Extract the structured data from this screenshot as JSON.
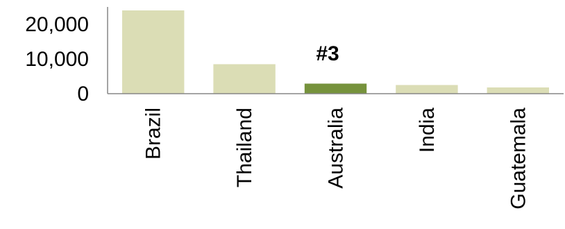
{
  "chart_data": {
    "type": "bar",
    "categories": [
      "Brazil",
      "Thailand",
      "Australia",
      "India",
      "Guatemala"
    ],
    "values": [
      24000,
      8500,
      2900,
      2500,
      1800
    ],
    "ylim": [
      0,
      25000
    ],
    "yticks": [
      0,
      10000,
      20000
    ],
    "ytick_labels": [
      "0",
      "10,000",
      "20,000"
    ],
    "grid": false,
    "highlight_index": 2,
    "annotation": "#3",
    "colors": {
      "bar": "#dbddb5",
      "highlight": "#76923c",
      "axis": "#868686"
    }
  }
}
